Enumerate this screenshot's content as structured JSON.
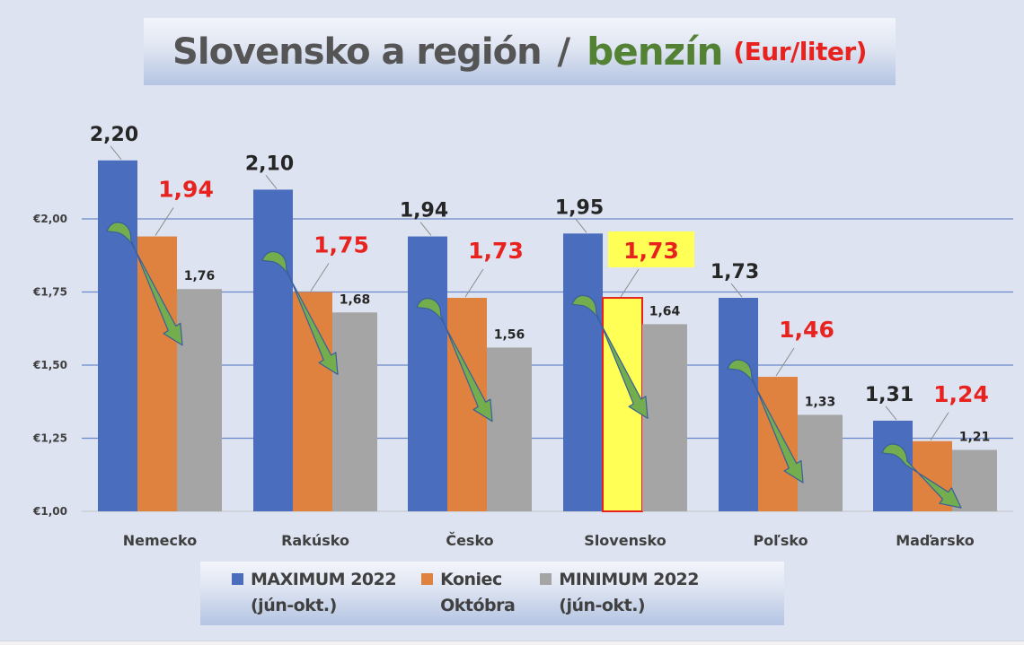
{
  "title": {
    "main": "Slovensko a región",
    "separator": "/",
    "fuel": "benzín",
    "unit": "(Eur/liter)"
  },
  "colors": {
    "background": "#dde3f0",
    "max": "#4a6ebd",
    "end_october": "#e0823f",
    "min": "#a5a5a5",
    "highlight_fill": "#ffff55",
    "highlight_border": "#e8231f",
    "gridline": "#6d88c9",
    "arrow_fill": "#74ad4e",
    "arrow_stroke": "#3a5f9a",
    "title_gray": "#555555",
    "title_green": "#548235",
    "red": "#e8231f"
  },
  "legend": {
    "items": [
      {
        "key": "max",
        "line1": "MAXIMUM 2022",
        "line2": "(jún-okt.)"
      },
      {
        "key": "end_october",
        "line1": "Koniec",
        "line2": "Októbra"
      },
      {
        "key": "min",
        "line1": "MINIMUM 2022",
        "line2": "(jún-okt.)"
      }
    ]
  },
  "chart_data": {
    "type": "bar",
    "title": "Slovensko a región / benzín (Eur/liter)",
    "xlabel": "",
    "ylabel": "",
    "ylim": [
      1.0,
      2.25
    ],
    "yticks": [
      "€1,00",
      "€1,25",
      "€1,50",
      "€1,75",
      "€2,00"
    ],
    "ytick_values": [
      1.0,
      1.25,
      1.5,
      1.75,
      2.0
    ],
    "grid": true,
    "legend_position": "bottom",
    "categories": [
      "Nemecko",
      "Rakúsko",
      "Česko",
      "Slovensko",
      "Poľsko",
      "Maďarsko"
    ],
    "series": [
      {
        "name": "MAXIMUM 2022 (jún-okt.)",
        "key": "max",
        "values": [
          2.2,
          2.1,
          1.94,
          1.95,
          1.73,
          1.31
        ],
        "labels": [
          "2,20",
          "2,10",
          "1,94",
          "1,95",
          "1,73",
          "1,31"
        ]
      },
      {
        "name": "Koniec Októbra",
        "key": "end_october",
        "values": [
          1.94,
          1.75,
          1.73,
          1.73,
          1.46,
          1.24
        ],
        "labels": [
          "1,94",
          "1,75",
          "1,73",
          "1,73",
          "1,46",
          "1,24"
        ]
      },
      {
        "name": "MINIMUM 2022 (jún-okt.)",
        "key": "min",
        "values": [
          1.76,
          1.68,
          1.56,
          1.64,
          1.33,
          1.21
        ],
        "labels": [
          "1,76",
          "1,68",
          "1,56",
          "1,64",
          "1,33",
          "1,21"
        ]
      }
    ],
    "highlight": {
      "category": "Slovensko",
      "series": "end_october"
    },
    "annotations": "Green downward arrows in each group from maximum to minimum"
  }
}
